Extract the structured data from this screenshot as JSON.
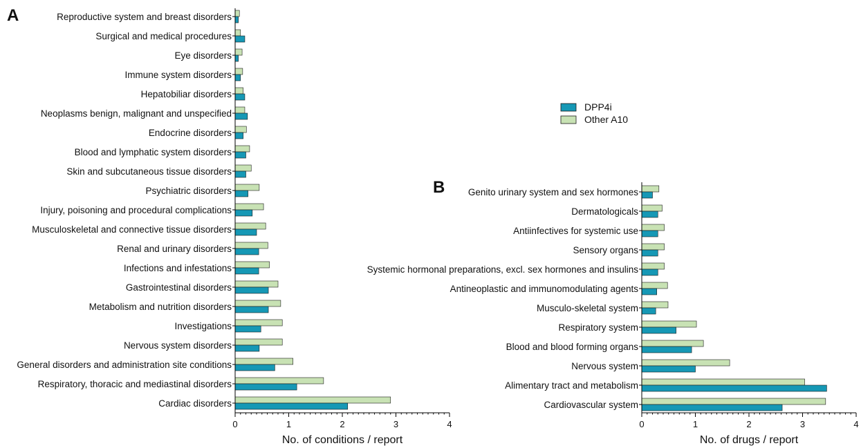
{
  "colors": {
    "dpp4i": "#1698b5",
    "other_a10": "#c8e2b4",
    "bar_edge": "#1a1a1a"
  },
  "legend": {
    "items": [
      "DPP4i",
      "Other A10"
    ],
    "placement": "top-right"
  },
  "chart_data": [
    {
      "panel": "A",
      "type": "bar",
      "orientation": "horizontal",
      "xlabel": "No. of conditions / report",
      "xlim": [
        0,
        4
      ],
      "xticks": [
        0,
        1,
        2,
        3,
        4
      ],
      "grid": false,
      "categories": [
        "Reproductive system and breast disorders",
        "Surgical and medical procedures",
        "Eye disorders",
        "Immune system disorders",
        "Hepatobiliar disorders",
        "Neoplasms benign, malignant and unspecified",
        "Endocrine disorders",
        "Blood and lymphatic system disorders",
        "Skin and subcutaneous tissue disorders",
        "Psychiatric disorders",
        "Injury, poisoning and procedural complications",
        "Musculoskeletal and connective tissue disorders",
        "Renal and urinary disorders",
        "Infections and infestations",
        "Gastrointestinal disorders",
        "Metabolism and nutrition disorders",
        "Investigations",
        "Nervous system disorders",
        "General disorders and administration site conditions",
        "Respiratory, thoracic and mediastinal disorders",
        "Cardiac disorders"
      ],
      "series": [
        {
          "name": "Other A10",
          "values": [
            0.08,
            0.1,
            0.13,
            0.14,
            0.15,
            0.18,
            0.21,
            0.27,
            0.3,
            0.45,
            0.53,
            0.57,
            0.61,
            0.64,
            0.8,
            0.85,
            0.88,
            0.88,
            1.08,
            1.65,
            2.9
          ]
        },
        {
          "name": "DPP4i",
          "values": [
            0.06,
            0.18,
            0.06,
            0.1,
            0.18,
            0.23,
            0.15,
            0.2,
            0.2,
            0.24,
            0.32,
            0.4,
            0.44,
            0.44,
            0.62,
            0.62,
            0.48,
            0.45,
            0.74,
            1.15,
            2.1
          ]
        }
      ]
    },
    {
      "panel": "B",
      "type": "bar",
      "orientation": "horizontal",
      "xlabel": "No. of drugs / report",
      "xlim": [
        0,
        4
      ],
      "xticks": [
        0,
        1,
        2,
        3,
        4
      ],
      "grid": false,
      "categories": [
        "Genito urinary system and sex hormones",
        "Dermatologicals",
        "Antiinfectives for systemic use",
        "Sensory organs",
        "Systemic hormonal preparations, excl. sex hormones and insulins",
        "Antineoplastic and immunomodulating agents",
        "Musculo-skeletal system",
        "Respiratory system",
        "Blood and blood forming organs",
        "Nervous system",
        "Alimentary tract and metabolism",
        "Cardiovascular system"
      ],
      "series": [
        {
          "name": "Other A10",
          "values": [
            0.32,
            0.38,
            0.42,
            0.42,
            0.42,
            0.48,
            0.49,
            1.02,
            1.15,
            1.64,
            3.04,
            3.43
          ]
        },
        {
          "name": "DPP4i",
          "values": [
            0.2,
            0.3,
            0.3,
            0.3,
            0.3,
            0.28,
            0.26,
            0.64,
            0.93,
            1.0,
            3.45,
            2.62
          ]
        }
      ]
    }
  ]
}
